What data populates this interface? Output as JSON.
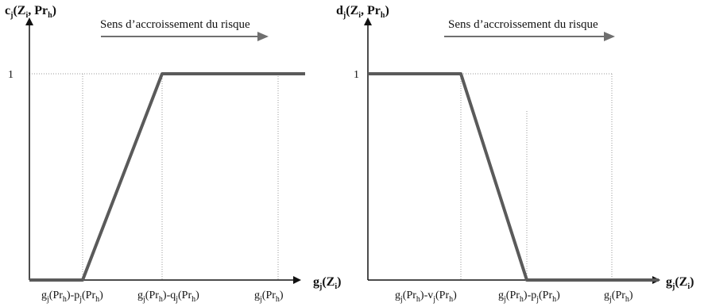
{
  "figure": {
    "colors": {
      "axis": "#111111",
      "curve": "#5a5a5a",
      "guide": "#9a9a9a",
      "text": "#111111"
    }
  },
  "panels": [
    {
      "id": "concordance",
      "y_axis_label": {
        "p1": "c",
        "p1_sub": "j",
        "p2": "(Z",
        "p2_sub": "i",
        "p3": ", Pr",
        "p3_sub": "h",
        "p4": ")"
      },
      "x_axis_label": {
        "p1": "g",
        "p1_sub": "j",
        "p2": "(Z",
        "p2_sub": "i",
        "p3": ")"
      },
      "y_tick_one": "1",
      "direction_text": "Sens d’accroissement du risque",
      "x_ticks": [
        {
          "p1": "g",
          "p1_sub": "j",
          "p2": "(Pr",
          "p2_sub": "h",
          "p3": ")-p",
          "p3_sub": "j",
          "p4": "(Pr",
          "p4_sub": "h",
          "p5": ")"
        },
        {
          "p1": "g",
          "p1_sub": "j",
          "p2": "(Pr",
          "p2_sub": "h",
          "p3": ")-q",
          "p3_sub": "j",
          "p4": "(Pr",
          "p4_sub": "h",
          "p5": ")"
        },
        {
          "p1": "g",
          "p1_sub": "j",
          "p2": "(Pr",
          "p2_sub": "h",
          "p3": ")"
        }
      ]
    },
    {
      "id": "discordance",
      "y_axis_label": {
        "p1": "d",
        "p1_sub": "j",
        "p2": "(Z",
        "p2_sub": "i",
        "p3": ", Pr",
        "p3_sub": "h",
        "p4": ")"
      },
      "x_axis_label": {
        "p1": "g",
        "p1_sub": "j",
        "p2": "(Z",
        "p2_sub": "i",
        "p3": ")"
      },
      "y_tick_one": "1",
      "direction_text": "Sens d’accroissement du risque",
      "x_ticks": [
        {
          "p1": "g",
          "p1_sub": "j",
          "p2": "(Pr",
          "p2_sub": "h",
          "p3": ")-v",
          "p3_sub": "j",
          "p4": "(Pr",
          "p4_sub": "h",
          "p5": ")"
        },
        {
          "p1": "g",
          "p1_sub": "j",
          "p2": "(Pr",
          "p2_sub": "h",
          "p3": ")-p",
          "p3_sub": "j",
          "p4": "(Pr",
          "p4_sub": "h",
          "p5": ")"
        },
        {
          "p1": "g",
          "p1_sub": "j",
          "p2": "(Pr",
          "p2_sub": "h",
          "p3": ")"
        }
      ]
    }
  ]
}
